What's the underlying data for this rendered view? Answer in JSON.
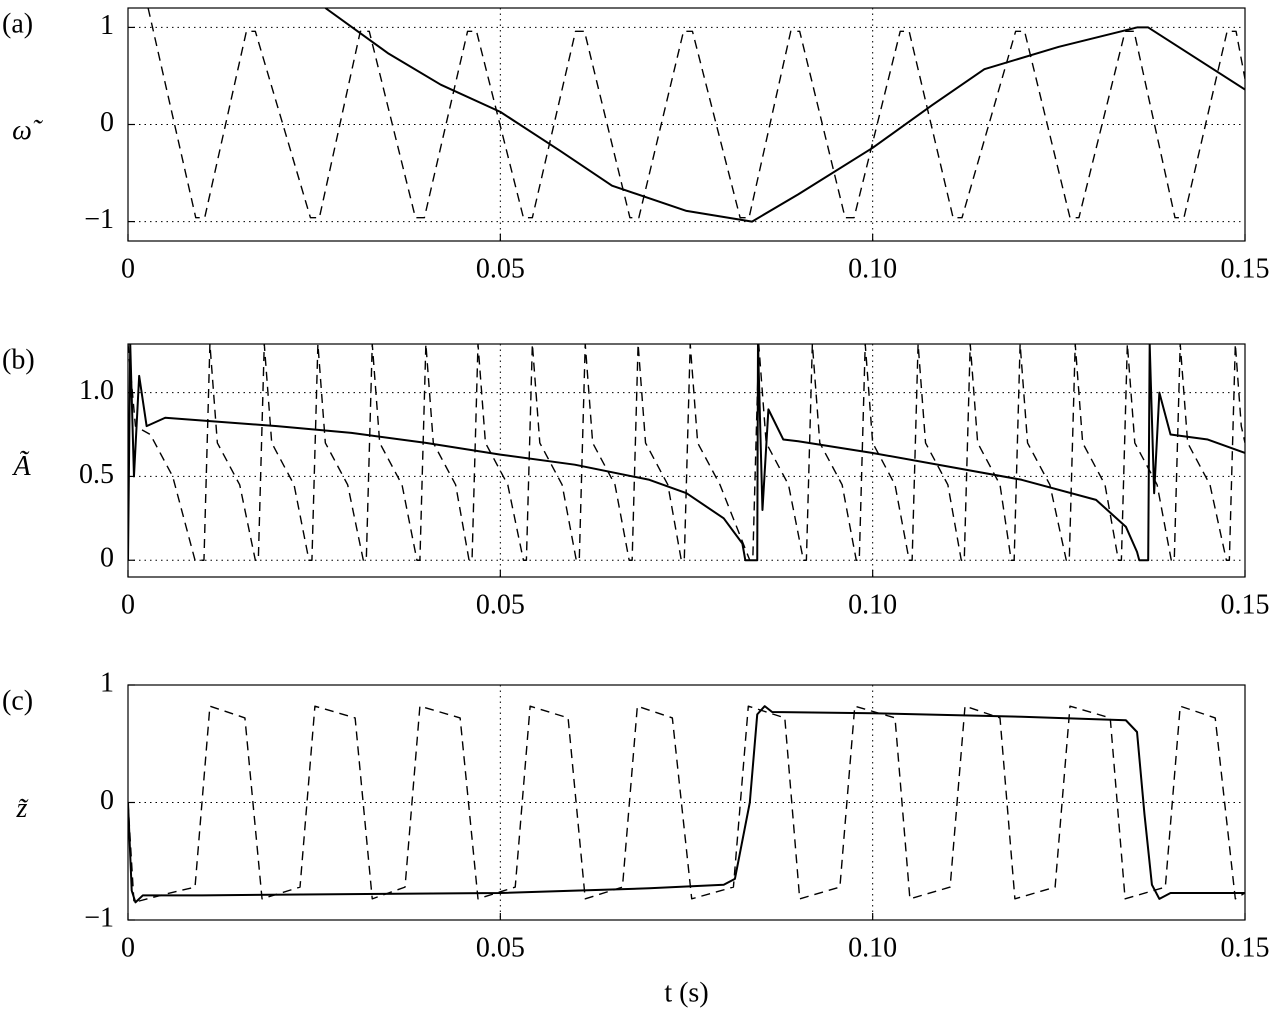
{
  "chart_data": [
    {
      "type": "line",
      "panel_label": "(a)",
      "ylabel": "ω̃",
      "xlim": [
        0,
        0.15
      ],
      "ylim": [
        -1.2,
        1.2
      ],
      "xticks": [
        0,
        0.05,
        {
          "value": 0.1,
          "label": "0.10"
        },
        0.15
      ],
      "yticks": [
        {
          "value": -1,
          "label": "−1"
        },
        0,
        1
      ],
      "grid": true,
      "series": [
        {
          "color": "#000000",
          "linestyle": "solid",
          "x": [
            0.0265,
            0.035,
            0.042,
            0.05,
            0.058,
            0.065,
            0.075,
            0.0838,
            0.09,
            0.1,
            0.108,
            0.115,
            0.125,
            0.1355,
            0.137,
            0.15
          ],
          "values": [
            1.2,
            0.73,
            0.41,
            0.13,
            -0.27,
            -0.63,
            -0.89,
            -1,
            -0.72,
            -0.24,
            0.2,
            0.57,
            0.8,
            1,
            1,
            0.36
          ]
        },
        {
          "color": "#000000",
          "linestyle": "dashed",
          "x": [
            0.0027,
            0.0091,
            0.0103,
            0.0159,
            0.0171,
            0.0245,
            0.0257,
            0.0312,
            0.0324,
            0.0386,
            0.0398,
            0.0456,
            0.0468,
            0.0531,
            0.0543,
            0.0601,
            0.0613,
            0.0674,
            0.0686,
            0.0746,
            0.0758,
            0.0822,
            0.0834,
            0.089,
            0.0902,
            0.0963,
            0.0975,
            0.1037,
            0.1049,
            0.1108,
            0.112,
            0.1192,
            0.1204,
            0.1265,
            0.1277,
            0.1339,
            0.1351,
            0.1406,
            0.1418,
            0.1476,
            0.1488,
            0.15
          ],
          "values": [
            1.2,
            -0.96,
            -0.96,
            0.96,
            0.96,
            -0.96,
            -0.96,
            0.96,
            0.96,
            -0.96,
            -0.96,
            0.96,
            0.96,
            -0.96,
            -0.96,
            0.96,
            0.96,
            -0.96,
            -0.96,
            0.96,
            0.96,
            -0.96,
            -0.96,
            0.96,
            0.96,
            -0.96,
            -0.96,
            0.96,
            0.96,
            -0.96,
            -0.96,
            0.96,
            0.96,
            -0.96,
            -0.96,
            0.96,
            0.96,
            -0.96,
            -0.96,
            0.96,
            0.96,
            0.47
          ]
        }
      ]
    },
    {
      "type": "line",
      "panel_label": "(b)",
      "ylabel": "Ã",
      "xlim": [
        0,
        0.15
      ],
      "ylim": [
        -0.1,
        1.29
      ],
      "xticks": [
        0,
        0.05,
        {
          "value": 0.1,
          "label": "0.10"
        },
        0.15
      ],
      "yticks": [
        0,
        0.5,
        {
          "value": 1,
          "label": "1.0"
        }
      ],
      "grid": true,
      "series": [
        {
          "color": "#000000",
          "linestyle": "solid",
          "x": [
            0,
            0.0003,
            0.0008,
            0.0015,
            0.0025,
            0.005,
            0.02,
            0.03,
            0.04,
            0.05,
            0.06,
            0.07,
            0.075,
            0.08,
            0.0825,
            0.0829,
            0.0845,
            0.0846,
            0.0852,
            0.086,
            0.088,
            0.09,
            0.1,
            0.12,
            0.13,
            0.134,
            0.1355,
            0.1358,
            0.137,
            0.1372,
            0.1378,
            0.1385,
            0.14,
            0.145,
            0.15
          ],
          "values": [
            0,
            1.29,
            0.5,
            1.1,
            0.8,
            0.85,
            0.8,
            0.76,
            0.7,
            0.63,
            0.57,
            0.48,
            0.4,
            0.25,
            0.1,
            0,
            0,
            1.29,
            0.3,
            0.9,
            0.72,
            0.71,
            0.64,
            0.48,
            0.36,
            0.2,
            0.05,
            0,
            0,
            1.29,
            0.4,
            1,
            0.75,
            0.72,
            0.64
          ]
        },
        {
          "color": "#000000",
          "linestyle": "dashed",
          "x": [
            0,
            0.001,
            0.003,
            0.006,
            0.009,
            0.0102,
            0.011,
            0.012,
            0.015,
            0.0171,
            0.0175,
            0.0183,
            0.0193,
            0.0223,
            0.0243,
            0.0247,
            0.0255,
            0.0265,
            0.0295,
            0.0316,
            0.032,
            0.0328,
            0.0338,
            0.0368,
            0.0388,
            0.0392,
            0.04,
            0.041,
            0.044,
            0.0458,
            0.0462,
            0.047,
            0.048,
            0.051,
            0.0531,
            0.0535,
            0.0543,
            0.0553,
            0.0583,
            0.0602,
            0.0606,
            0.0614,
            0.0624,
            0.0654,
            0.0673,
            0.0677,
            0.0685,
            0.0695,
            0.0725,
            0.0743,
            0.0747,
            0.0755,
            0.0765,
            0.0795,
            0.0835,
            0.0839,
            0.0847,
            0.0857,
            0.0887,
            0.0907,
            0.0911,
            0.0919,
            0.0929,
            0.0959,
            0.0978,
            0.0982,
            0.099,
            0.1,
            0.103,
            0.1049,
            0.1053,
            0.1061,
            0.1071,
            0.1101,
            0.1119,
            0.1123,
            0.1131,
            0.1141,
            0.1171,
            0.1186,
            0.119,
            0.1198,
            0.1208,
            0.1238,
            0.126,
            0.1264,
            0.1272,
            0.1282,
            0.1312,
            0.133,
            0.1334,
            0.1342,
            0.1352,
            0.1382,
            0.1401,
            0.1405,
            0.1413,
            0.1423,
            0.1453,
            0.1475,
            0.1479,
            0.1487,
            0.1495,
            0.15
          ],
          "values": [
            1.29,
            0.8,
            0.75,
            0.5,
            0,
            0,
            1.29,
            0.7,
            0.45,
            0,
            0,
            1.29,
            0.7,
            0.45,
            0,
            0,
            1.29,
            0.7,
            0.45,
            0,
            0,
            1.29,
            0.7,
            0.45,
            0,
            0,
            1.29,
            0.7,
            0.45,
            0,
            0,
            1.29,
            0.7,
            0.45,
            0,
            0,
            1.29,
            0.7,
            0.45,
            0,
            0,
            1.29,
            0.7,
            0.45,
            0,
            0,
            1.29,
            0.7,
            0.45,
            0,
            0,
            1.29,
            0.7,
            0.45,
            0,
            0,
            1.29,
            0.7,
            0.45,
            0,
            0,
            1.29,
            0.7,
            0.45,
            0,
            0,
            1.29,
            0.7,
            0.45,
            0,
            0,
            1.29,
            0.7,
            0.45,
            0,
            0,
            1.29,
            0.7,
            0.45,
            0,
            0,
            1.29,
            0.7,
            0.45,
            0,
            0,
            1.29,
            0.7,
            0.45,
            0,
            0,
            1.29,
            0.7,
            0.45,
            0,
            0,
            1.29,
            0.7,
            0.45,
            0,
            0,
            1.29,
            0.8,
            0.7
          ]
        }
      ]
    },
    {
      "type": "line",
      "panel_label": "(c)",
      "ylabel": "z̃",
      "xlabel": "t (s)",
      "xlim": [
        0,
        0.15
      ],
      "ylim": [
        -1,
        1
      ],
      "xticks": [
        0,
        0.05,
        {
          "value": 0.1,
          "label": "0.10"
        },
        0.15
      ],
      "yticks": [
        {
          "value": -1,
          "label": "−1"
        },
        0,
        1
      ],
      "grid": true,
      "series": [
        {
          "color": "#000000",
          "linestyle": "solid",
          "x": [
            0,
            0.0005,
            0.001,
            0.002,
            0.01,
            0.05,
            0.07,
            0.08,
            0.0815,
            0.0835,
            0.0845,
            0.0855,
            0.0865,
            0.1,
            0.12,
            0.134,
            0.1355,
            0.1365,
            0.1375,
            0.1385,
            0.14,
            0.15
          ],
          "values": [
            0,
            -0.75,
            -0.85,
            -0.79,
            -0.79,
            -0.77,
            -0.73,
            -0.7,
            -0.65,
            0,
            0.75,
            0.82,
            0.77,
            0.76,
            0.73,
            0.7,
            0.6,
            -0.1,
            -0.7,
            -0.82,
            -0.77,
            -0.77
          ]
        },
        {
          "color": "#000000",
          "linestyle": "dashed",
          "x": [
            0,
            0.0008,
            0.005,
            0.009,
            0.011,
            0.0157,
            0.018,
            0.0231,
            0.0251,
            0.0305,
            0.0328,
            0.0372,
            0.0392,
            0.0446,
            0.047,
            0.052,
            0.054,
            0.0591,
            0.0614,
            0.0664,
            0.0684,
            0.0731,
            0.0757,
            0.0813,
            0.0833,
            0.0882,
            0.0902,
            0.0956,
            0.0976,
            0.103,
            0.105,
            0.1104,
            0.1124,
            0.1171,
            0.1191,
            0.1245,
            0.1265,
            0.1319,
            0.1339,
            0.1393,
            0.1413,
            0.146,
            0.1487,
            0.15
          ],
          "values": [
            0,
            -0.85,
            -0.78,
            -0.72,
            0.82,
            0.72,
            -0.82,
            -0.72,
            0.82,
            0.72,
            -0.82,
            -0.72,
            0.82,
            0.72,
            -0.82,
            -0.72,
            0.82,
            0.72,
            -0.82,
            -0.72,
            0.82,
            0.72,
            -0.82,
            -0.72,
            0.82,
            0.72,
            -0.82,
            -0.72,
            0.82,
            0.72,
            -0.82,
            -0.72,
            0.82,
            0.72,
            -0.82,
            -0.72,
            0.82,
            0.72,
            -0.82,
            -0.72,
            0.82,
            0.72,
            -0.82,
            -0.77
          ]
        }
      ]
    }
  ]
}
